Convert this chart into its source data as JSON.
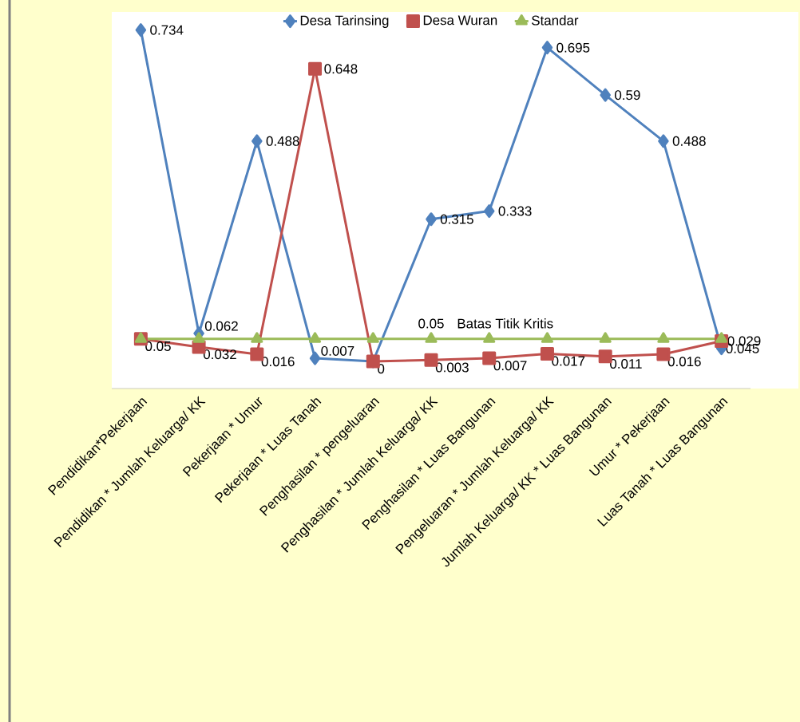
{
  "chart_data": {
    "type": "line",
    "categories": [
      "Pendidikan*Pekerjaan",
      "Pendidikan * Jumlah Keluarga/ KK",
      "Pekerjaan * Umur",
      "Pekerjaan * Luas Tanah",
      "Penghasilan * pengeluaran",
      "Penghasilan * Jumlah Keluarga/ KK",
      "Penghasilan * Luas Bangunan",
      "Pengeluaran * Jumlah Keluarga/ KK",
      "Jumlah Keluarga/ KK * Luas Bangunan",
      "Umur * Pekerjaan",
      "Luas Tanah * Luas Bangunan"
    ],
    "series": [
      {
        "name": "Desa Tarinsing",
        "color": "#4f81bd",
        "marker": "diamond",
        "values": [
          0.734,
          0.062,
          0.488,
          0.007,
          0,
          0.315,
          0.333,
          0.695,
          0.59,
          0.488,
          0.029
        ],
        "value_labels": [
          "0.734",
          "0.062",
          "0.488",
          "0.007",
          null,
          "0.315",
          "0.333",
          "0.695",
          "0.59",
          "0.488",
          "0.029"
        ]
      },
      {
        "name": "Desa Wuran",
        "color": "#c0504d",
        "marker": "square",
        "values": [
          0.05,
          0.032,
          0.016,
          0.648,
          0,
          0.003,
          0.007,
          0.017,
          0.011,
          0.016,
          0.045
        ],
        "value_labels": [
          "0.05",
          "0.032",
          "0.016",
          "0.648",
          "0",
          "0.003",
          "0.007",
          "0.017",
          "0.011",
          "0.016",
          "0.045"
        ]
      },
      {
        "name": "Standar",
        "color": "#9bbb59",
        "marker": "triangle",
        "values": [
          0.05,
          0.05,
          0.05,
          0.05,
          0.05,
          0.05,
          0.05,
          0.05,
          0.05,
          0.05,
          0.05
        ],
        "value_labels": [
          null,
          null,
          null,
          null,
          null,
          "0.05",
          null,
          null,
          null,
          null,
          null
        ]
      }
    ],
    "annotations": [
      {
        "text": "Batas Titik Kritis",
        "x": "Penghasilan * Luas Bangunan",
        "y": 0.05
      }
    ],
    "legend": "top",
    "grid": false
  }
}
